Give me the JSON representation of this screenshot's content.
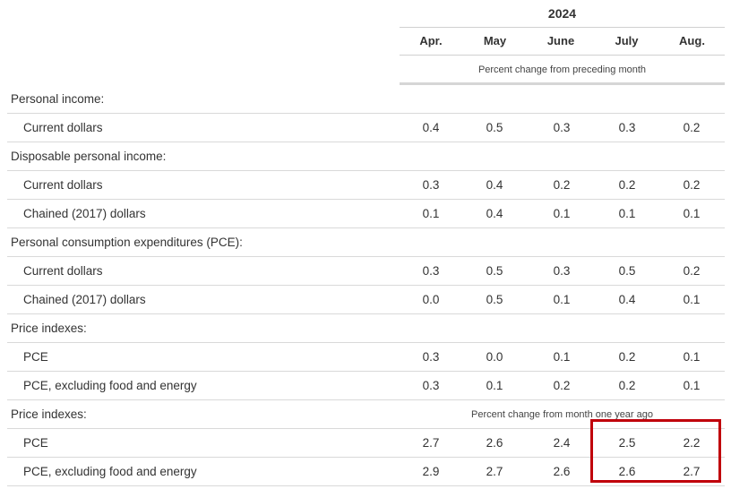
{
  "header": {
    "year": "2024",
    "months": [
      "Apr.",
      "May",
      "June",
      "July",
      "Aug."
    ],
    "caption_monthly": "Percent change from preceding month",
    "caption_yearly": "Percent change from month one year ago"
  },
  "rows": [
    {
      "type": "section",
      "label": "Personal income:",
      "values": []
    },
    {
      "type": "item",
      "label": "Current dollars",
      "values": [
        "0.4",
        "0.5",
        "0.3",
        "0.3",
        "0.2"
      ]
    },
    {
      "type": "section",
      "label": "Disposable personal income:",
      "values": []
    },
    {
      "type": "item",
      "label": "Current dollars",
      "values": [
        "0.3",
        "0.4",
        "0.2",
        "0.2",
        "0.2"
      ]
    },
    {
      "type": "item",
      "label": "Chained (2017) dollars",
      "values": [
        "0.1",
        "0.4",
        "0.1",
        "0.1",
        "0.1"
      ]
    },
    {
      "type": "section",
      "label": "Personal consumption expenditures (PCE):",
      "values": []
    },
    {
      "type": "item",
      "label": "Current dollars",
      "values": [
        "0.3",
        "0.5",
        "0.3",
        "0.5",
        "0.2"
      ]
    },
    {
      "type": "item",
      "label": "Chained (2017) dollars",
      "values": [
        "0.0",
        "0.5",
        "0.1",
        "0.4",
        "0.1"
      ]
    },
    {
      "type": "section",
      "label": "Price indexes:",
      "values": []
    },
    {
      "type": "item",
      "label": "PCE",
      "values": [
        "0.3",
        "0.0",
        "0.1",
        "0.2",
        "0.1"
      ]
    },
    {
      "type": "item",
      "label": "PCE, excluding food and energy",
      "values": [
        "0.3",
        "0.1",
        "0.2",
        "0.2",
        "0.1"
      ]
    },
    {
      "type": "section",
      "label": "Price indexes:",
      "values": [],
      "caption": true
    },
    {
      "type": "item",
      "label": "PCE",
      "values": [
        "2.7",
        "2.6",
        "2.4",
        "2.5",
        "2.2"
      ]
    },
    {
      "type": "item",
      "label": "PCE, excluding food and energy",
      "values": [
        "2.9",
        "2.7",
        "2.6",
        "2.6",
        "2.7"
      ]
    }
  ],
  "highlight_color": "#c0000b"
}
